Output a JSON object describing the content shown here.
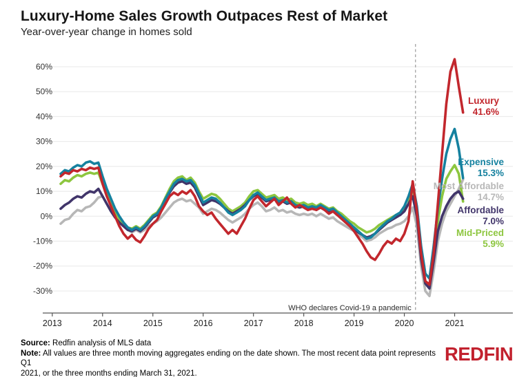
{
  "header": {
    "title": "Luxury-Home Sales Growth Outpaces Rest of Market",
    "subtitle": "Year-over-year change in homes sold"
  },
  "chart_data": {
    "type": "line",
    "title": "Luxury-Home Sales Growth Outpaces Rest of Market",
    "subtitle": "Year-over-year change in homes sold",
    "x_start_date": "2013-03",
    "x_end_date": "2021-03",
    "x_tick_labels": [
      "2013",
      "2014",
      "2015",
      "2016",
      "2017",
      "2018",
      "2019",
      "2020",
      "2021"
    ],
    "y_ticks": [
      60,
      50,
      40,
      30,
      20,
      10,
      0,
      -10,
      -20,
      -30
    ],
    "y_tick_labels": [
      "60%",
      "50%",
      "40%",
      "30%",
      "20%",
      "10%",
      "0%",
      "-10%",
      "-20%",
      "-30%"
    ],
    "ylim": [
      -35,
      65
    ],
    "grid": "horizontal",
    "legend_position": "right-of-line-ends",
    "annotation": {
      "text": "WHO declares Covid-19 a pandemic",
      "x_date": "2020-03",
      "style": "vertical-dashed-line"
    },
    "series": [
      {
        "name": "Luxury",
        "label": "Luxury",
        "end_label": "41.6%",
        "end_value": 41.6,
        "color": "#c2272d",
        "values": [
          16,
          17.5,
          17,
          18.5,
          18,
          19,
          18.5,
          19.5,
          19,
          19.5,
          13,
          8,
          4,
          0,
          -4,
          -7,
          -9,
          -7.5,
          -9.5,
          -10.5,
          -8,
          -5,
          -3,
          -1.5,
          2,
          5,
          8,
          9.5,
          8.5,
          10,
          9,
          10.5,
          8,
          4,
          2,
          0.5,
          1.5,
          -1,
          -3,
          -5,
          -7,
          -5.5,
          -7,
          -4,
          -1,
          3,
          6.5,
          8,
          6,
          4,
          5.5,
          7,
          4.5,
          6,
          7.5,
          5,
          3.5,
          4.5,
          3.5,
          2.5,
          3,
          2.5,
          3.5,
          2.5,
          1,
          2,
          0.5,
          -1,
          -2.5,
          -4,
          -6,
          -8.5,
          -11,
          -14,
          -16.5,
          -17.5,
          -15,
          -12,
          -10,
          -11,
          -9,
          -10,
          -7,
          -2,
          14,
          2,
          -15,
          -26,
          -27.5,
          -15,
          5,
          25,
          45,
          58,
          63,
          52,
          41.6
        ]
      },
      {
        "name": "Expensive",
        "label": "Expensive",
        "end_label": "15.3%",
        "end_value": 15.3,
        "color": "#15819f",
        "values": [
          17,
          18.5,
          18,
          19.5,
          20.5,
          20,
          21.5,
          22,
          21,
          21.5,
          16,
          11,
          7,
          3,
          0,
          -2.5,
          -4.5,
          -5.5,
          -4.5,
          -5.5,
          -4,
          -2,
          0,
          1,
          3.5,
          7,
          10,
          13,
          14.5,
          15,
          14,
          14.5,
          12.5,
          9,
          5.5,
          6.5,
          7.5,
          7,
          5.5,
          3.5,
          1.5,
          0.5,
          1.5,
          2.5,
          4,
          6.5,
          8.5,
          9.5,
          8,
          6.5,
          7,
          7.5,
          6,
          6.5,
          5.5,
          6,
          4.5,
          4,
          4.5,
          3.5,
          4,
          3.5,
          4.5,
          3.5,
          2.5,
          3,
          1.5,
          0,
          -1.5,
          -3,
          -4.5,
          -6,
          -7.5,
          -9,
          -8.5,
          -7,
          -5,
          -3.5,
          -2,
          -1,
          0.5,
          1.5,
          4,
          8,
          13,
          4,
          -12,
          -23,
          -25,
          -12,
          3,
          15,
          25,
          31,
          35,
          27,
          15.3
        ]
      },
      {
        "name": "Most Affordable",
        "label": "Most Affordable",
        "end_label": "14.7%",
        "end_value": 14.7,
        "color": "#b7b7b7",
        "values": [
          -3,
          -1.5,
          -1,
          1,
          2.5,
          2,
          3.5,
          4,
          5.5,
          7.5,
          8,
          5,
          2,
          -0.5,
          -2.5,
          -4,
          -5.5,
          -6.5,
          -5.5,
          -6.5,
          -5.5,
          -4,
          -3,
          -2,
          -0.5,
          1.5,
          3.5,
          5.5,
          6.5,
          7,
          6,
          6.5,
          5,
          3.5,
          1,
          2,
          3,
          2.5,
          1.5,
          0,
          -1.5,
          -2.5,
          -1.5,
          -0.5,
          1,
          3,
          4.5,
          5.5,
          4,
          2,
          2.5,
          3.5,
          2,
          2.5,
          1.5,
          2,
          1,
          0.5,
          1,
          0.5,
          1,
          0,
          1,
          0,
          -1,
          -0.5,
          -2,
          -3,
          -4,
          -5,
          -6,
          -7.5,
          -8.5,
          -10,
          -9.5,
          -8.5,
          -7,
          -6,
          -5,
          -4.5,
          -3.5,
          -3,
          -2,
          0,
          3.5,
          -4,
          -20,
          -30,
          -32,
          -22,
          -10,
          -3,
          2,
          5,
          8,
          11,
          14.7
        ]
      },
      {
        "name": "Affordable",
        "label": "Affordable",
        "end_label": "7.0%",
        "end_value": 7.0,
        "color": "#41356a",
        "values": [
          3,
          4.5,
          5.5,
          7,
          8,
          7.5,
          9,
          10,
          9.5,
          11,
          8,
          5,
          2,
          -0.5,
          -2.5,
          -4,
          -5.5,
          -6,
          -5,
          -6,
          -4.5,
          -2.5,
          -0.5,
          0.5,
          3,
          6.5,
          9.5,
          12,
          13.5,
          14,
          13,
          13.5,
          11.5,
          8,
          4.5,
          5.5,
          6.5,
          6,
          5,
          3.5,
          2,
          1,
          2,
          3,
          4.5,
          6.5,
          8,
          9,
          7.5,
          6,
          6.5,
          7,
          5.5,
          6,
          5,
          5.5,
          4,
          3.5,
          4,
          3,
          3.5,
          2.5,
          3.5,
          2.5,
          1.5,
          2,
          0.5,
          -0.5,
          -2,
          -3.5,
          -5,
          -6.5,
          -7.5,
          -8.5,
          -8,
          -7,
          -5.5,
          -4,
          -2.5,
          -1.5,
          -0.5,
          0.5,
          2,
          5,
          8,
          0,
          -17,
          -27,
          -29,
          -18,
          -6,
          0,
          4,
          7,
          9,
          10,
          7.0
        ]
      },
      {
        "name": "Mid-Priced",
        "label": "Mid-Priced",
        "end_label": "5.9%",
        "end_value": 5.9,
        "color": "#8dc63f",
        "values": [
          13,
          14.5,
          14,
          15.5,
          16.5,
          16,
          17,
          17.5,
          17,
          17.5,
          13,
          9,
          5,
          1.5,
          -1,
          -3,
          -4.5,
          -5,
          -4,
          -5,
          -3.5,
          -1.5,
          0.5,
          1.5,
          4,
          7.5,
          11,
          14,
          15.5,
          16,
          14.5,
          15.5,
          13.5,
          10,
          7,
          8,
          9,
          8.5,
          7,
          5,
          3,
          2,
          3,
          4,
          5.5,
          8,
          10,
          10.5,
          9,
          7.5,
          8,
          8.5,
          7,
          7.5,
          6.5,
          7,
          5.5,
          5,
          5.5,
          4.5,
          5,
          4,
          5,
          4,
          3,
          3.5,
          2,
          1,
          -0.5,
          -2,
          -3,
          -4.5,
          -5.5,
          -6.5,
          -6,
          -5,
          -3.5,
          -2.5,
          -1.5,
          -0.5,
          0.5,
          1,
          2.5,
          5,
          12,
          2,
          -16,
          -27,
          -28.5,
          -16,
          -2,
          8,
          15,
          18,
          20.5,
          17,
          5.9
        ]
      }
    ]
  },
  "footer": {
    "source_label": "Source:",
    "source_text": " Redfin analysis of MLS data",
    "note_label": "Note:",
    "note_text_line1": " All values are three month moving aggregates ending on the date shown. The most recent data point represents Q1",
    "note_text_line2": "2021, or the three months ending March 31, 2021.",
    "logo": "REDFIN"
  }
}
